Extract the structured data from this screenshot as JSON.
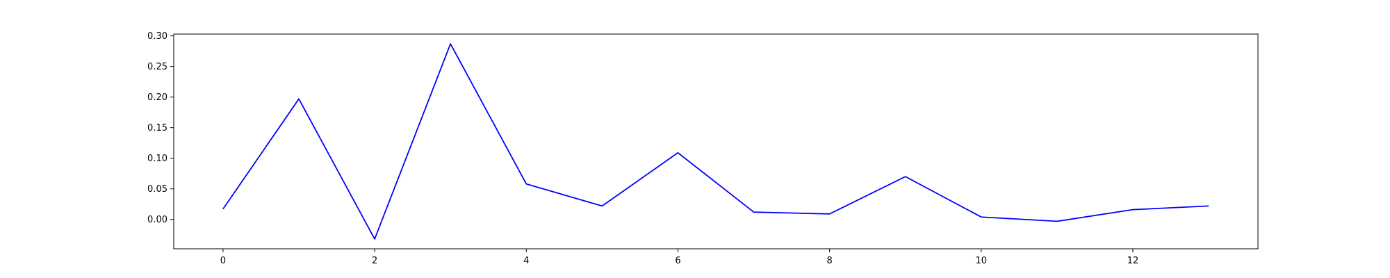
{
  "chart_data": {
    "type": "line",
    "title": "",
    "xlabel": "",
    "ylabel": "",
    "x": [
      0,
      1,
      2,
      3,
      4,
      5,
      6,
      7,
      8,
      9,
      10,
      11,
      12,
      13
    ],
    "series": [
      {
        "values": [
          0.017,
          0.197,
          -0.032,
          0.287,
          0.058,
          0.022,
          0.109,
          0.012,
          0.009,
          0.07,
          0.004,
          -0.003,
          0.016,
          0.022
        ],
        "color": "#0000ff"
      }
    ],
    "xlim": [
      -0.65,
      13.65
    ],
    "ylim": [
      -0.048,
      0.303
    ],
    "xticks": [
      0,
      2,
      4,
      6,
      8,
      10,
      12
    ],
    "xtick_labels": [
      "0",
      "2",
      "4",
      "6",
      "8",
      "10",
      "12"
    ],
    "yticks": [
      0.0,
      0.05,
      0.1,
      0.15,
      0.2,
      0.25,
      0.3
    ],
    "ytick_labels": [
      "0.00",
      "0.05",
      "0.10",
      "0.15",
      "0.20",
      "0.25",
      "0.30"
    ],
    "grid": false,
    "legend": "none"
  }
}
